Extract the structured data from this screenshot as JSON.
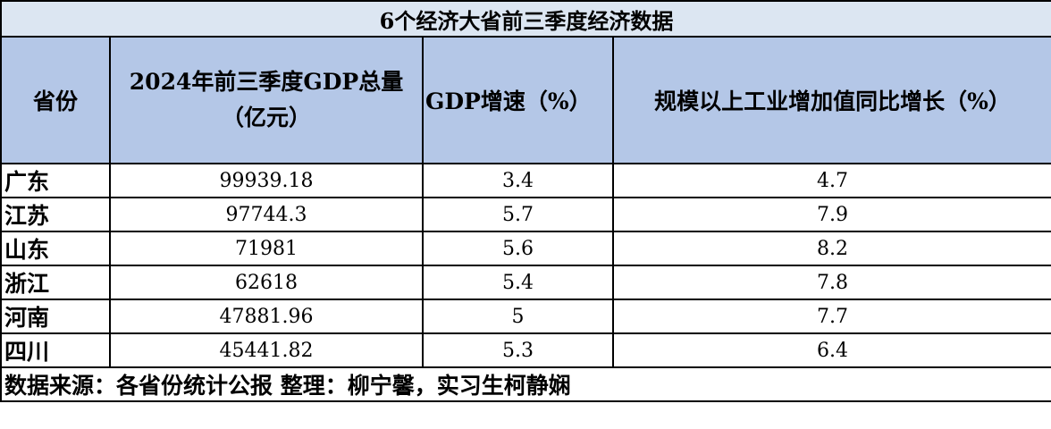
{
  "table": {
    "title": "6个经济大省前三季度经济数据",
    "headers": {
      "province": "省份",
      "gdp_total": "2024年前三季度GDP总量（亿元）",
      "gdp_growth": "GDP增速（%）",
      "industrial_growth": "规模以上工业增加值同比增长（%）"
    },
    "rows": [
      {
        "province": "广东",
        "gdp_total": "99939.18",
        "gdp_growth": "3.4",
        "industrial_growth": "4.7"
      },
      {
        "province": "江苏",
        "gdp_total": "97744.3",
        "gdp_growth": "5.7",
        "industrial_growth": "7.9"
      },
      {
        "province": "山东",
        "gdp_total": "71981",
        "gdp_growth": "5.6",
        "industrial_growth": "8.2"
      },
      {
        "province": "浙江",
        "gdp_total": "62618",
        "gdp_growth": "5.4",
        "industrial_growth": "7.8"
      },
      {
        "province": "河南",
        "gdp_total": "47881.96",
        "gdp_growth": "5",
        "industrial_growth": "7.7"
      },
      {
        "province": "四川",
        "gdp_total": "45441.82",
        "gdp_growth": "5.3",
        "industrial_growth": "6.4"
      }
    ],
    "footer": "数据来源：各省份统计公报 整理：柳宁馨，实习生柯静娴"
  },
  "colors": {
    "title_bg": "#dce6f2",
    "header_bg": "#b4c7e7",
    "border": "#000000"
  }
}
